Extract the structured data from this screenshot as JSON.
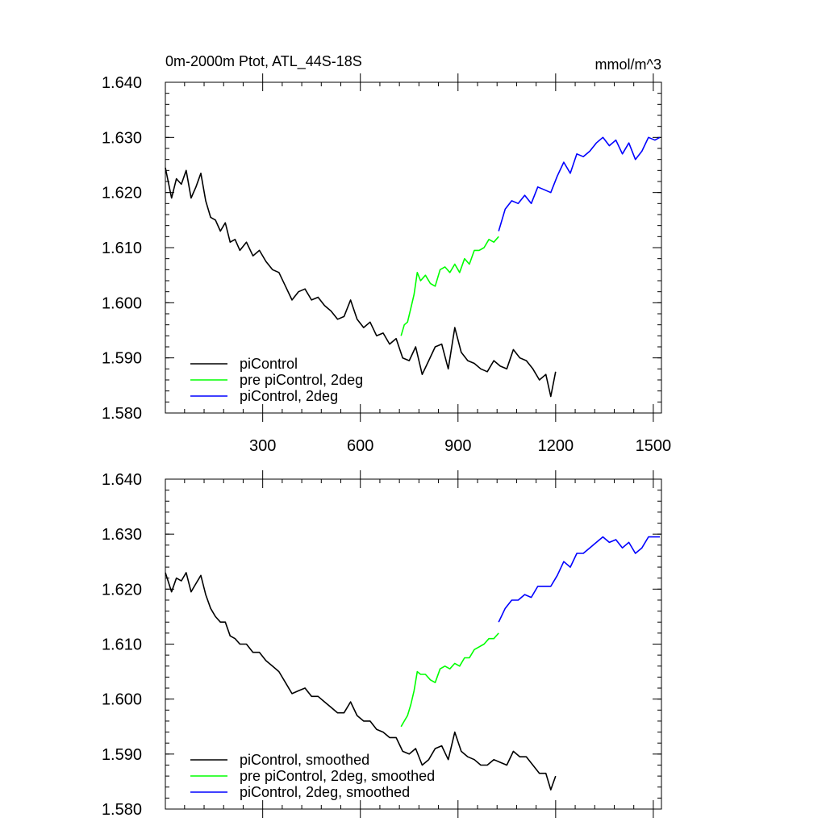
{
  "figure": {
    "title": "0m-2000m Ptot, ATL_44S-18S",
    "units": "mmol/m^3"
  },
  "chart_data": [
    {
      "type": "line",
      "title": "0m-2000m Ptot, ATL_44S-18S",
      "units_label": "mmol/m^3",
      "xlim": [
        1,
        1525
      ],
      "ylim": [
        1.58,
        1.64
      ],
      "xticks": [
        300,
        600,
        900,
        1200,
        1500
      ],
      "xtick_labels": [
        "300",
        "600",
        "900",
        "1200",
        "1500"
      ],
      "yticks": [
        1.58,
        1.59,
        1.6,
        1.61,
        1.62,
        1.63,
        1.64
      ],
      "ytick_labels": [
        "1.580",
        "1.590",
        "1.600",
        "1.610",
        "1.620",
        "1.630",
        "1.640"
      ],
      "legend_position": "bottom-left",
      "series": [
        {
          "name": "piControl",
          "color": "#000000",
          "x": [
            1,
            20,
            35,
            50,
            65,
            80,
            95,
            110,
            125,
            140,
            155,
            170,
            185,
            200,
            215,
            230,
            250,
            270,
            290,
            310,
            330,
            350,
            370,
            390,
            410,
            430,
            450,
            470,
            490,
            510,
            530,
            550,
            570,
            590,
            610,
            630,
            650,
            670,
            690,
            710,
            730,
            750,
            770,
            790,
            810,
            830,
            850,
            870,
            890,
            910,
            930,
            950,
            970,
            990,
            1010,
            1030,
            1050,
            1070,
            1090,
            1110,
            1130,
            1150,
            1170,
            1185,
            1200
          ],
          "y": [
            1.6245,
            1.619,
            1.6225,
            1.6215,
            1.624,
            1.619,
            1.621,
            1.6235,
            1.6185,
            1.6155,
            1.615,
            1.613,
            1.6145,
            1.611,
            1.6115,
            1.6095,
            1.611,
            1.6085,
            1.6095,
            1.6075,
            1.606,
            1.6055,
            1.603,
            1.6005,
            1.602,
            1.6025,
            1.6005,
            1.601,
            1.5995,
            1.5985,
            1.597,
            1.5975,
            1.6005,
            1.597,
            1.5955,
            1.5965,
            1.594,
            1.5945,
            1.5925,
            1.5935,
            1.59,
            1.5895,
            1.592,
            1.587,
            1.5895,
            1.592,
            1.5925,
            1.588,
            1.5955,
            1.591,
            1.5895,
            1.589,
            1.588,
            1.5875,
            1.5895,
            1.5885,
            1.588,
            1.5915,
            1.59,
            1.5895,
            1.588,
            1.586,
            1.587,
            1.583,
            1.5875
          ]
        },
        {
          "name": "pre piControl, 2deg",
          "color": "#00ff00",
          "x": [
            725,
            735,
            745,
            755,
            765,
            775,
            785,
            800,
            815,
            830,
            845,
            860,
            875,
            890,
            905,
            920,
            935,
            950,
            965,
            980,
            995,
            1010,
            1025
          ],
          "y": [
            1.594,
            1.596,
            1.5965,
            1.599,
            1.6015,
            1.6055,
            1.604,
            1.605,
            1.6035,
            1.603,
            1.606,
            1.6065,
            1.6055,
            1.607,
            1.6055,
            1.608,
            1.607,
            1.6095,
            1.6095,
            1.61,
            1.6115,
            1.611,
            1.612
          ]
        },
        {
          "name": "piControl, 2deg",
          "color": "#0000ff",
          "x": [
            1025,
            1045,
            1065,
            1085,
            1105,
            1125,
            1145,
            1165,
            1185,
            1205,
            1225,
            1245,
            1265,
            1285,
            1305,
            1325,
            1345,
            1365,
            1385,
            1405,
            1425,
            1445,
            1465,
            1485,
            1505,
            1520
          ],
          "y": [
            1.613,
            1.617,
            1.6185,
            1.618,
            1.6195,
            1.618,
            1.621,
            1.6205,
            1.62,
            1.623,
            1.6255,
            1.6235,
            1.627,
            1.6265,
            1.6275,
            1.629,
            1.63,
            1.6285,
            1.6295,
            1.627,
            1.629,
            1.626,
            1.6275,
            1.63,
            1.6295,
            1.63
          ]
        }
      ]
    },
    {
      "type": "line",
      "xlim": [
        1,
        1525
      ],
      "ylim": [
        1.58,
        1.64
      ],
      "xticks": [
        300,
        600,
        900,
        1200,
        1500
      ],
      "yticks": [
        1.58,
        1.59,
        1.6,
        1.61,
        1.62,
        1.63,
        1.64
      ],
      "ytick_labels": [
        "1.580",
        "1.590",
        "1.600",
        "1.610",
        "1.620",
        "1.630",
        "1.640"
      ],
      "legend_position": "bottom-left",
      "series": [
        {
          "name": "piControl, smoothed",
          "color": "#000000",
          "x": [
            1,
            20,
            35,
            50,
            65,
            80,
            95,
            110,
            125,
            140,
            155,
            170,
            185,
            200,
            215,
            230,
            250,
            270,
            290,
            310,
            330,
            350,
            370,
            390,
            410,
            430,
            450,
            470,
            490,
            510,
            530,
            550,
            570,
            590,
            610,
            630,
            650,
            670,
            690,
            710,
            730,
            750,
            770,
            790,
            810,
            830,
            850,
            870,
            890,
            910,
            930,
            950,
            970,
            990,
            1010,
            1030,
            1050,
            1070,
            1090,
            1110,
            1130,
            1150,
            1170,
            1185,
            1200
          ],
          "y": [
            1.623,
            1.6195,
            1.622,
            1.6215,
            1.623,
            1.6195,
            1.621,
            1.6225,
            1.619,
            1.6165,
            1.615,
            1.614,
            1.614,
            1.6115,
            1.611,
            1.61,
            1.61,
            1.6085,
            1.6085,
            1.607,
            1.606,
            1.605,
            1.603,
            1.601,
            1.6015,
            1.602,
            1.6005,
            1.6005,
            1.5995,
            1.5985,
            1.5975,
            1.5975,
            1.5995,
            1.597,
            1.596,
            1.596,
            1.5945,
            1.594,
            1.593,
            1.593,
            1.5905,
            1.59,
            1.591,
            1.588,
            1.589,
            1.591,
            1.5915,
            1.589,
            1.594,
            1.5905,
            1.5895,
            1.589,
            1.588,
            1.588,
            1.589,
            1.5885,
            1.588,
            1.5905,
            1.5895,
            1.5895,
            1.588,
            1.5865,
            1.5865,
            1.5835,
            1.586
          ]
        },
        {
          "name": "pre piControl, 2deg, smoothed",
          "color": "#00ff00",
          "x": [
            725,
            735,
            745,
            755,
            765,
            775,
            785,
            800,
            815,
            830,
            845,
            860,
            875,
            890,
            905,
            920,
            935,
            950,
            965,
            980,
            995,
            1010,
            1025
          ],
          "y": [
            1.595,
            1.596,
            1.597,
            1.599,
            1.6015,
            1.605,
            1.6045,
            1.6045,
            1.6035,
            1.603,
            1.6055,
            1.606,
            1.6055,
            1.6065,
            1.606,
            1.6075,
            1.6075,
            1.609,
            1.6095,
            1.61,
            1.611,
            1.611,
            1.612
          ]
        },
        {
          "name": "piControl, 2deg, smoothed",
          "color": "#0000ff",
          "x": [
            1025,
            1045,
            1065,
            1085,
            1105,
            1125,
            1145,
            1165,
            1185,
            1205,
            1225,
            1245,
            1265,
            1285,
            1305,
            1325,
            1345,
            1365,
            1385,
            1405,
            1425,
            1445,
            1465,
            1485,
            1505,
            1520
          ],
          "y": [
            1.614,
            1.6165,
            1.618,
            1.618,
            1.619,
            1.6185,
            1.6205,
            1.6205,
            1.6205,
            1.6225,
            1.625,
            1.624,
            1.6265,
            1.6265,
            1.6275,
            1.6285,
            1.6295,
            1.6285,
            1.629,
            1.6275,
            1.6285,
            1.6265,
            1.6275,
            1.6295,
            1.6295,
            1.6295
          ]
        }
      ]
    }
  ]
}
